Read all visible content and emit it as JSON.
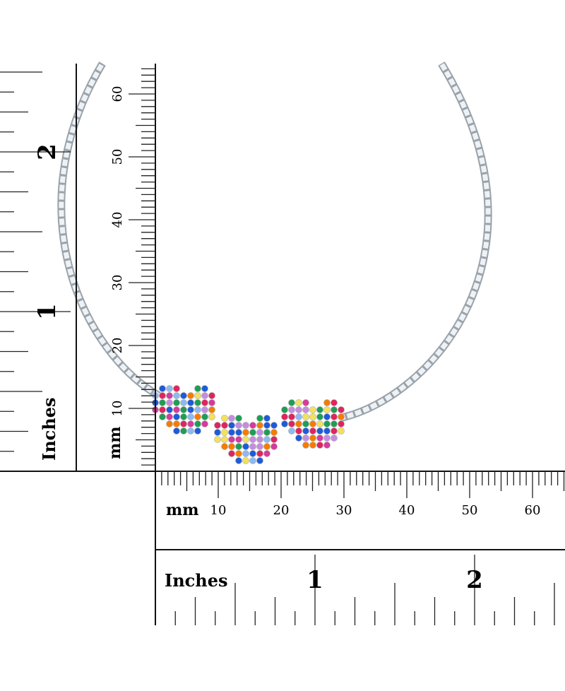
{
  "horizontal_ruler": {
    "mm_label": "mm",
    "mm_ticks": [
      "10",
      "20",
      "30",
      "40",
      "50",
      "60"
    ],
    "inch_label": "Inches",
    "inch_ticks": [
      "1",
      "2"
    ]
  },
  "vertical_ruler": {
    "mm_label": "mm",
    "mm_ticks": [
      "10",
      "20",
      "30",
      "40",
      "50",
      "60"
    ],
    "inch_label": "Inches",
    "inch_ticks": [
      "1",
      "2"
    ]
  }
}
